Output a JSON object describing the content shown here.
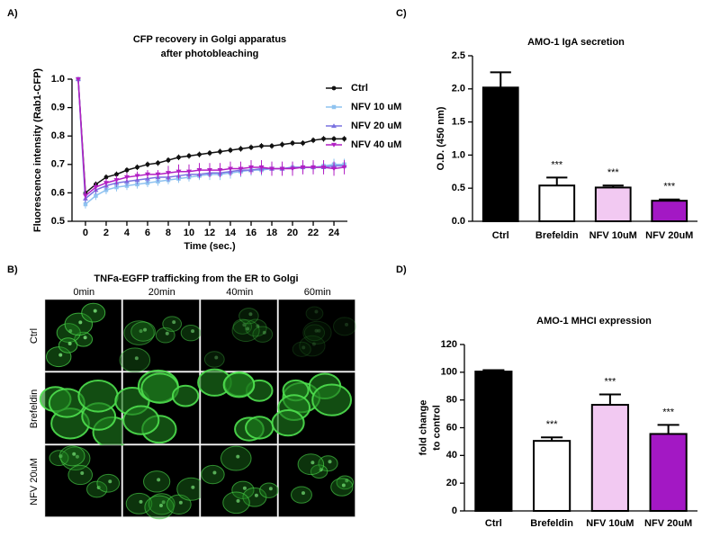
{
  "chart_data": [
    {
      "type": "line",
      "panel_label": "A)",
      "title": [
        "CFP recovery in Golgi apparatus",
        "after photobleaching"
      ],
      "xlabel": "Time (sec.)",
      "ylabel": "Fluorescence intensity (Rab1-CFP)",
      "xlim": [
        -1.3,
        25.3
      ],
      "xticks": [
        0,
        2,
        4,
        6,
        8,
        10,
        12,
        14,
        16,
        18,
        20,
        22,
        24
      ],
      "ylim": [
        0.5,
        1.0
      ],
      "yticks": [
        0.5,
        0.6,
        0.7,
        0.8,
        0.9,
        {
          "value": 1,
          "label": "1.0"
        }
      ],
      "legend": "right",
      "x": [
        -0.7,
        0,
        1,
        2,
        3,
        4,
        5,
        6,
        7,
        8,
        9,
        10,
        11,
        12,
        13,
        14,
        15,
        16,
        17,
        18,
        19,
        20,
        21,
        22,
        23,
        24,
        25
      ],
      "series": [
        {
          "name": "Ctrl",
          "color": "#111111",
          "marker": "circle",
          "values": [
            1.0,
            0.6,
            0.63,
            0.655,
            0.665,
            0.68,
            0.69,
            0.7,
            0.705,
            0.715,
            0.725,
            0.73,
            0.735,
            0.74,
            0.745,
            0.75,
            0.755,
            0.76,
            0.765,
            0.765,
            0.77,
            0.775,
            0.775,
            0.785,
            0.79,
            0.79,
            0.79
          ],
          "errors": [
            0,
            0.01,
            0.01,
            0.01,
            0.01,
            0.01,
            0.01,
            0.01,
            0.01,
            0.01,
            0.01,
            0.01,
            0.01,
            0.01,
            0.01,
            0.01,
            0.01,
            0.01,
            0.01,
            0.01,
            0.01,
            0.01,
            0.01,
            0.01,
            0.01,
            0.01,
            0.01
          ]
        },
        {
          "name": "NFV 10 uM",
          "color": "#8fc3f0",
          "marker": "square",
          "values": [
            1.0,
            0.56,
            0.59,
            0.61,
            0.62,
            0.625,
            0.63,
            0.635,
            0.64,
            0.645,
            0.65,
            0.655,
            0.66,
            0.665,
            0.665,
            0.67,
            0.675,
            0.68,
            0.68,
            0.685,
            0.685,
            0.69,
            0.69,
            0.69,
            0.695,
            0.7,
            0.7
          ],
          "errors": [
            0,
            0.015,
            0.015,
            0.015,
            0.015,
            0.015,
            0.015,
            0.015,
            0.015,
            0.015,
            0.015,
            0.015,
            0.015,
            0.02,
            0.02,
            0.02,
            0.02,
            0.02,
            0.02,
            0.02,
            0.02,
            0.02,
            0.02,
            0.02,
            0.02,
            0.02,
            0.02
          ]
        },
        {
          "name": "NFV 20 uM",
          "color": "#7a72e0",
          "marker": "triangle",
          "values": [
            1.0,
            0.58,
            0.61,
            0.625,
            0.635,
            0.64,
            0.645,
            0.65,
            0.655,
            0.655,
            0.66,
            0.665,
            0.665,
            0.67,
            0.67,
            0.675,
            0.68,
            0.68,
            0.685,
            0.685,
            0.685,
            0.69,
            0.69,
            0.69,
            0.69,
            0.695,
            0.695
          ],
          "errors": [
            0,
            0.015,
            0.015,
            0.015,
            0.015,
            0.015,
            0.015,
            0.015,
            0.015,
            0.015,
            0.015,
            0.015,
            0.015,
            0.015,
            0.015,
            0.015,
            0.015,
            0.015,
            0.015,
            0.015,
            0.015,
            0.015,
            0.015,
            0.015,
            0.015,
            0.015,
            0.015
          ]
        },
        {
          "name": "NFV 40 uM",
          "color": "#b21fc4",
          "marker": "down-triangle",
          "values": [
            1.0,
            0.59,
            0.62,
            0.635,
            0.645,
            0.655,
            0.66,
            0.665,
            0.665,
            0.67,
            0.675,
            0.675,
            0.68,
            0.68,
            0.68,
            0.685,
            0.685,
            0.69,
            0.69,
            0.685,
            0.685,
            0.685,
            0.69,
            0.69,
            0.69,
            0.685,
            0.69
          ],
          "errors": [
            0,
            0.015,
            0.015,
            0.015,
            0.015,
            0.015,
            0.015,
            0.015,
            0.015,
            0.025,
            0.025,
            0.025,
            0.025,
            0.025,
            0.025,
            0.025,
            0.025,
            0.025,
            0.025,
            0.025,
            0.025,
            0.025,
            0.025,
            0.025,
            0.025,
            0.025,
            0.025
          ]
        }
      ]
    },
    {
      "type": "bar",
      "panel_label": "C)",
      "title": [
        "AMO-1 IgA secretion"
      ],
      "ylabel": [
        "O.D. (450 nm)"
      ],
      "categories": [
        "Ctrl",
        "Brefeldin",
        "NFV 10uM",
        "NFV 20uM"
      ],
      "values": [
        2.02,
        0.54,
        0.51,
        0.31
      ],
      "errors": [
        0.23,
        0.12,
        0.03,
        0.02
      ],
      "colors": [
        "#000000",
        "#ffffff",
        "#f2c9f2",
        "#a318c4"
      ],
      "significance": [
        null,
        "***",
        "***",
        "***"
      ],
      "ylim": [
        0,
        2.5
      ],
      "yticks": [
        {
          "value": 0,
          "label": "0.0"
        },
        0.5,
        {
          "value": 1,
          "label": "1.0"
        },
        1.5,
        {
          "value": 2,
          "label": "2.0"
        },
        2.5
      ]
    },
    {
      "type": "bar",
      "panel_label": "D)",
      "title": [
        "AMO-1 MHCI expression"
      ],
      "ylabel": [
        "fold change",
        "to control"
      ],
      "categories": [
        "Ctrl",
        "Brefeldin",
        "NFV 10uM",
        "NFV 20uM"
      ],
      "values": [
        100.5,
        50.5,
        76.5,
        55.5
      ],
      "errors": [
        1,
        2.5,
        7.5,
        6.5
      ],
      "colors": [
        "#000000",
        "#ffffff",
        "#f2c9f2",
        "#a318c4"
      ],
      "significance": [
        null,
        "***",
        "***",
        "***"
      ],
      "ylim": [
        0,
        120
      ],
      "yticks": [
        0,
        20,
        40,
        60,
        80,
        100,
        120
      ]
    }
  ],
  "image_panel": {
    "panel_label": "B)",
    "title": "TNFa-EGFP trafficking from the ER to Golgi",
    "columns": [
      "0min",
      "20min",
      "40min",
      "60min"
    ],
    "rows": [
      "Ctrl",
      "Brefeldin",
      "NFV 20uM"
    ]
  }
}
